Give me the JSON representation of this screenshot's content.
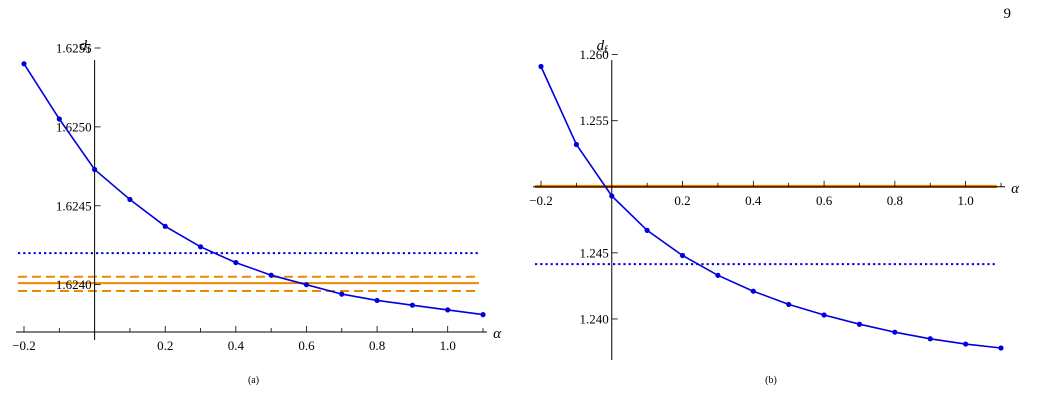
{
  "page_number": "9",
  "chart_data": [
    {
      "type": "line",
      "panel_label": "(a)",
      "xlabel": "α",
      "ylabel_main": "d",
      "ylabel_sub": "f",
      "xlim": [
        -0.2,
        1.1
      ],
      "ylim": [
        1.6237,
        1.6255
      ],
      "x_origin": 0,
      "x_ticks": [
        -0.2,
        0.2,
        0.4,
        0.6,
        0.8,
        1.0
      ],
      "x_tick_labels": [
        "−0.2",
        "0.2",
        "0.4",
        "0.6",
        "0.8",
        "1.0"
      ],
      "y_ticks": [
        1.624,
        1.6245,
        1.625,
        1.6255
      ],
      "y_tick_labels": [
        "1.6240",
        "1.6245",
        "1.6250",
        "1.6255"
      ],
      "series": [
        {
          "color": "#0000dd",
          "x": [
            -0.2,
            -0.1,
            0.0,
            0.1,
            0.2,
            0.3,
            0.4,
            0.5,
            0.6,
            0.7,
            0.8,
            0.9,
            1.0,
            1.1
          ],
          "y": [
            1.6254,
            1.62505,
            1.62473,
            1.62454,
            1.62437,
            1.62424,
            1.62414,
            1.62406,
            1.624,
            1.62394,
            1.6239,
            1.62387,
            1.62384,
            1.62381
          ]
        }
      ],
      "hlines": [
        {
          "y": 1.6242,
          "color": "#0000dd",
          "style": "dotted"
        },
        {
          "y": 1.62405,
          "color": "#ee8800",
          "style": "dashed"
        },
        {
          "y": 1.62401,
          "color": "#ee8800",
          "style": "solid"
        },
        {
          "y": 1.62396,
          "color": "#ee8800",
          "style": "dashed"
        }
      ]
    },
    {
      "type": "line",
      "panel_label": "(b)",
      "xlabel": "α",
      "ylabel_main": "d",
      "ylabel_sub": "f",
      "xlim": [
        -0.2,
        1.1
      ],
      "ylim": [
        1.2375,
        1.2605
      ],
      "x_origin": 0,
      "x_axis_y": 1.25,
      "x_ticks": [
        -0.2,
        0.2,
        0.4,
        0.6,
        0.8,
        1.0
      ],
      "x_tick_labels": [
        "−0.2",
        "0.2",
        "0.4",
        "0.6",
        "0.8",
        "1.0"
      ],
      "y_ticks": [
        1.24,
        1.245,
        1.255,
        1.26
      ],
      "y_tick_labels": [
        "1.240",
        "1.245",
        "1.255",
        "1.260"
      ],
      "series": [
        {
          "color": "#0000dd",
          "x": [
            -0.2,
            -0.1,
            0.0,
            0.1,
            0.2,
            0.3,
            0.4,
            0.5,
            0.6,
            0.7,
            0.8,
            0.9,
            1.0,
            1.1
          ],
          "y": [
            1.2591,
            1.2532,
            1.2493,
            1.2467,
            1.2448,
            1.2433,
            1.2421,
            1.2411,
            1.2403,
            1.2396,
            1.239,
            1.2385,
            1.2381,
            1.2378
          ]
        }
      ],
      "hlines": [
        {
          "y": 1.24415,
          "color": "#0000dd",
          "style": "dotted"
        },
        {
          "y": 1.25005,
          "color": "#ee8800",
          "style": "solid",
          "width": 2.5
        },
        {
          "y": 1.24995,
          "color": "#cc6600",
          "style": "solid",
          "width": 1
        }
      ]
    }
  ]
}
